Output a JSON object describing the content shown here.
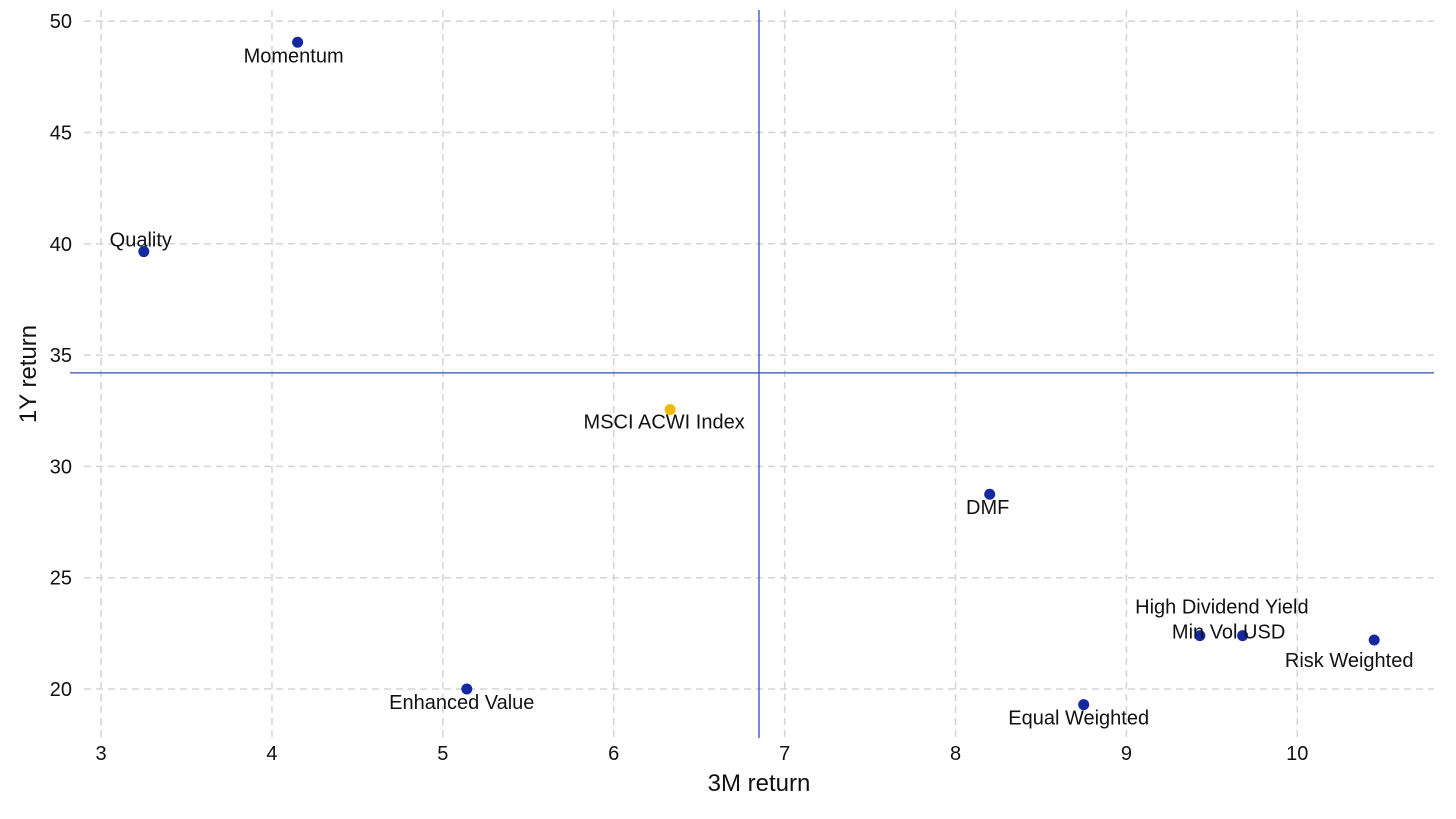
{
  "chart_data": {
    "type": "scatter",
    "title": "",
    "xlabel": "3M return",
    "ylabel": "1Y return",
    "xlim": [
      2.9,
      10.8
    ],
    "ylim": [
      17.8,
      50.5
    ],
    "x_ticks": [
      3,
      4,
      5,
      6,
      7,
      8,
      9,
      10
    ],
    "y_ticks": [
      20,
      25,
      30,
      35,
      40,
      45,
      50
    ],
    "grid": true,
    "grid_style": "dashed",
    "reference_lines": {
      "x": 6.85,
      "y": 34.2,
      "color": "#2f4fb3"
    },
    "colors": {
      "factor": "#1428a0",
      "index": "#f5b800"
    },
    "points": [
      {
        "label": "Momentum",
        "x": 4.15,
        "y": 49.05,
        "color": "#1428a0",
        "anchor": "middle",
        "dx": -4,
        "dy": 13
      },
      {
        "label": "Quality",
        "x": 3.25,
        "y": 39.65,
        "color": "#1428a0",
        "anchor": "middle",
        "dx": -3,
        "dy": -12
      },
      {
        "label": "MSCI ACWI Index",
        "x": 6.33,
        "y": 32.55,
        "color": "#f5b800",
        "anchor": "middle",
        "dx": -6,
        "dy": 12
      },
      {
        "label": "DMF",
        "x": 8.2,
        "y": 28.75,
        "color": "#1428a0",
        "anchor": "middle",
        "dx": -2,
        "dy": 13
      },
      {
        "label": "High Dividend Yield",
        "x": 9.43,
        "y": 22.4,
        "color": "#1428a0",
        "anchor": "middle",
        "dx": 22,
        "dy": -29
      },
      {
        "label": "Min Vol USD",
        "x": 9.68,
        "y": 22.4,
        "color": "#1428a0",
        "anchor": "middle",
        "dx": -14,
        "dy": -4
      },
      {
        "label": "Risk Weighted",
        "x": 10.45,
        "y": 22.2,
        "color": "#1428a0",
        "anchor": "middle",
        "dx": -25,
        "dy": 20
      },
      {
        "label": "Enhanced Value",
        "x": 5.14,
        "y": 20.0,
        "color": "#1428a0",
        "anchor": "middle",
        "dx": -5,
        "dy": 13
      },
      {
        "label": "Equal Weighted",
        "x": 8.75,
        "y": 19.3,
        "color": "#1428a0",
        "anchor": "middle",
        "dx": -5,
        "dy": 13
      }
    ]
  }
}
